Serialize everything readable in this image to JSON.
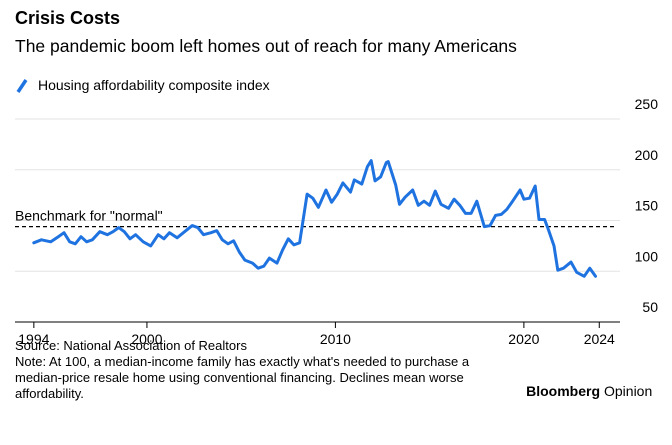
{
  "chart_data": {
    "type": "line",
    "title": "Crisis Costs",
    "subtitle": "The pandemic boom left homes out of reach for many Americans",
    "x": [
      1994.0,
      1994.4,
      1994.9,
      1995.3,
      1995.6,
      1995.9,
      1996.2,
      1996.5,
      1996.8,
      1997.1,
      1997.5,
      1997.9,
      1998.2,
      1998.5,
      1998.8,
      1999.1,
      1999.4,
      1999.8,
      2000.2,
      2000.6,
      2000.9,
      2001.2,
      2001.6,
      2002.0,
      2002.4,
      2002.7,
      2003.0,
      2003.4,
      2003.7,
      2004.0,
      2004.3,
      2004.6,
      2004.9,
      2005.2,
      2005.6,
      2005.9,
      2006.2,
      2006.5,
      2006.9,
      2007.2,
      2007.5,
      2007.8,
      2008.1,
      2008.5,
      2008.8,
      2009.1,
      2009.5,
      2009.8,
      2010.1,
      2010.4,
      2010.8,
      2011.0,
      2011.4,
      2011.7,
      2011.9,
      2012.1,
      2012.4,
      2012.7,
      2012.8,
      2013.2,
      2013.4,
      2013.7,
      2014.1,
      2014.4,
      2014.7,
      2015.0,
      2015.3,
      2015.6,
      2016.0,
      2016.3,
      2016.6,
      2016.9,
      2017.2,
      2017.5,
      2017.9,
      2018.2,
      2018.5,
      2018.8,
      2019.1,
      2019.4,
      2019.8,
      2020.0,
      2020.3,
      2020.6,
      2020.8,
      2021.1,
      2021.3,
      2021.6,
      2021.8,
      2022.1,
      2022.5,
      2022.8,
      2023.2,
      2023.5,
      2023.8
    ],
    "series": [
      {
        "name": "Housing affordability composite index",
        "color": "#1f73e0",
        "values": [
          128,
          131,
          129,
          134,
          138,
          129,
          127,
          134,
          129,
          131,
          139,
          136,
          139,
          143,
          139,
          132,
          136,
          129,
          125,
          136,
          132,
          138,
          133,
          139,
          145,
          143,
          136,
          138,
          140,
          131,
          127,
          130,
          119,
          111,
          108,
          103,
          105,
          113,
          108,
          121,
          132,
          126,
          128,
          176,
          172,
          163,
          180,
          168,
          176,
          187,
          178,
          190,
          186,
          203,
          209,
          189,
          193,
          207,
          208,
          185,
          166,
          173,
          180,
          165,
          169,
          165,
          179,
          166,
          162,
          171,
          165,
          157,
          157,
          169,
          144,
          145,
          155,
          156,
          161,
          169,
          180,
          171,
          172,
          184,
          151,
          151,
          141,
          125,
          101,
          103,
          109,
          99,
          95,
          103,
          95
        ]
      }
    ],
    "xlim": [
      1993,
      2025.1
    ],
    "xticks": [
      1994,
      2000,
      2010,
      2020,
      2024
    ],
    "ylim": [
      50,
      250
    ],
    "yticks": [
      50,
      100,
      150,
      200,
      250
    ],
    "grid": true,
    "annotations": [
      {
        "text": "Benchmark for \"normal\"",
        "value": 144
      }
    ],
    "source": "Source: National Association of Realtors",
    "note": [
      "Note: At 100, a median-income family has exactly what's needed to purchase a",
      "median-price resale home using conventional financing. Declines mean worse",
      "affordability."
    ],
    "brand": "Bloomberg",
    "brand_suffix": "Opinion"
  }
}
